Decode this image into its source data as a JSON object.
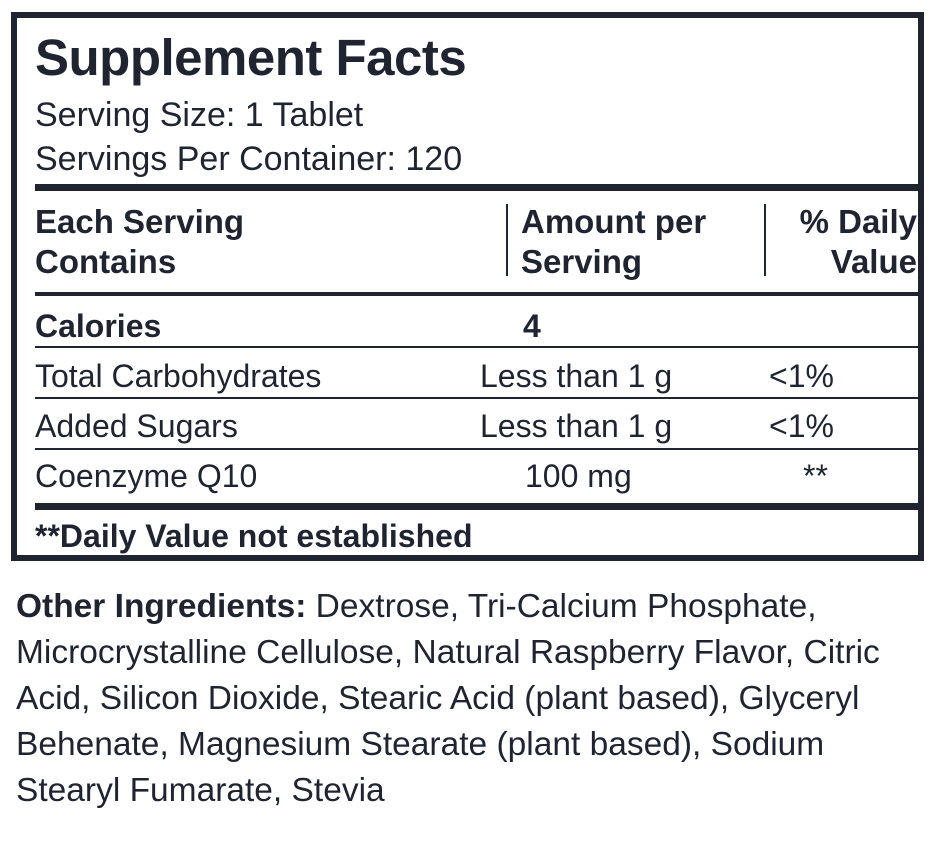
{
  "label": {
    "title": "Supplement Facts",
    "serving_size": "Serving Size: 1 Tablet",
    "servings_per_container": "Servings Per Container: 120",
    "headers": {
      "col1_line1": "Each Serving",
      "col1_line2": "Contains",
      "col2_line1": "Amount per",
      "col2_line2": "Serving",
      "col3_line1": "% Daily",
      "col3_line2": "Value"
    },
    "calories": {
      "label": "Calories",
      "amount": "4"
    },
    "rows": [
      {
        "name": "Total Carbohydrates",
        "amount": "Less than 1 g",
        "dv": "<1%"
      },
      {
        "name": "Added Sugars",
        "amount": "Less than 1 g",
        "dv": "<1%"
      },
      {
        "name": "Coenzyme Q10",
        "amount": "100 mg",
        "dv": "**"
      }
    ],
    "footnote": "**Daily Value not established"
  },
  "ingredients": {
    "heading": "Other Ingredients:",
    "text": " Dextrose, Tri-Calcium Phosphate, Microcrystalline Cellulose, Natural Raspberry Flavor, Citric Acid, Silicon Dioxide, Stearic Acid (plant based), Glyceryl Behenate, Magnesium Stearate (plant based), Sodium Stearyl Fumarate, Stevia"
  },
  "colors": {
    "ink": "#1f2430",
    "background": "#ffffff"
  }
}
